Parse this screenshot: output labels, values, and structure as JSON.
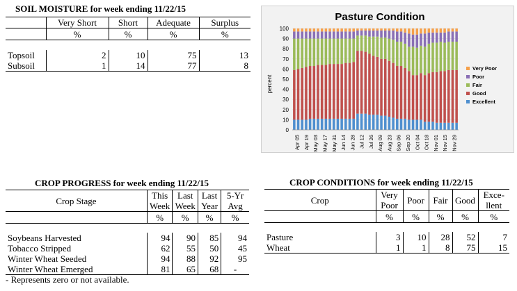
{
  "soil": {
    "title": "SOIL MOISTURE for week ending 11/22/15",
    "headers": [
      "",
      "Very Short",
      "Short",
      "Adequate",
      "Surplus"
    ],
    "units": [
      "",
      "%",
      "%",
      "%",
      "%"
    ],
    "rows": [
      [
        "Topsoil",
        "2",
        "10",
        "75",
        "13"
      ],
      [
        "Subsoil",
        "1",
        "14",
        "77",
        "8"
      ]
    ]
  },
  "progress": {
    "title": "CROP PROGRESS for week ending 11/22/15",
    "stage_header": "Crop Stage",
    "col_headers": [
      {
        "l1": "This",
        "l2": "Week"
      },
      {
        "l1": "Last",
        "l2": "Week"
      },
      {
        "l1": "Last",
        "l2": "Year"
      },
      {
        "l1": "5-Yr",
        "l2": "Avg"
      }
    ],
    "units": [
      "%",
      "%",
      "%",
      "%"
    ],
    "rows": [
      [
        "Soybeans Harvested",
        "94",
        "90",
        "85",
        "94"
      ],
      [
        "Tobacco Stripped",
        "62",
        "55",
        "50",
        "45"
      ],
      [
        "Winter Wheat Seeded",
        "94",
        "88",
        "92",
        "95"
      ],
      [
        "Winter Wheat Emerged",
        "81",
        "65",
        "68",
        "-"
      ]
    ],
    "footnote": "- Represents zero or not available."
  },
  "conditions": {
    "title": "CROP CONDITIONS for week ending 11/22/15",
    "crop_header": "Crop",
    "col_headers": [
      {
        "l1": "Very",
        "l2": "Poor"
      },
      {
        "l1": "Poor",
        "l2": ""
      },
      {
        "l1": "Fair",
        "l2": ""
      },
      {
        "l1": "Good",
        "l2": ""
      },
      {
        "l1": "Exce-",
        "l2": "llent"
      }
    ],
    "units": [
      "%",
      "%",
      "%",
      "%",
      "%"
    ],
    "rows": [
      [
        "Pasture",
        "3",
        "10",
        "28",
        "52",
        "7"
      ],
      [
        "Wheat",
        "1",
        "1",
        "8",
        "75",
        "15"
      ]
    ]
  },
  "chart_data": {
    "type": "bar",
    "stacked": true,
    "title": "Pasture Condition",
    "ylabel": "percent",
    "ylim": [
      0,
      100
    ],
    "yticks": [
      0,
      10,
      20,
      30,
      40,
      50,
      60,
      70,
      80,
      90,
      100
    ],
    "x_tick_labels": [
      "Apr 05",
      "Apr 19",
      "May 03",
      "May 17",
      "May 31",
      "Jun 14",
      "Jun 28",
      "Jul 12",
      "Jul 26",
      "Aug 09",
      "Aug 23",
      "Sep 06",
      "Sep 20",
      "Oct 04",
      "Oct 18",
      "Nov 01",
      "Nov 15",
      "Nov 29"
    ],
    "legend_position": "right",
    "colors": {
      "Very Poor": "#f5a04a",
      "Poor": "#8a6fb5",
      "Fair": "#9bbb59",
      "Good": "#c0504d",
      "Excellent": "#4f8fcf"
    },
    "series": [
      {
        "name": "Excellent",
        "values": [
          10,
          10,
          10,
          10,
          11,
          11,
          11,
          11,
          11,
          11,
          11,
          11,
          11,
          11,
          11,
          11,
          16,
          16,
          16,
          15,
          15,
          15,
          14,
          14,
          13,
          12,
          11,
          11,
          11,
          10,
          10,
          10,
          10,
          8,
          8,
          8,
          7,
          7,
          7,
          7,
          7,
          7
        ]
      },
      {
        "name": "Good",
        "values": [
          49,
          50,
          51,
          52,
          52,
          52,
          53,
          53,
          53,
          54,
          54,
          54,
          54,
          55,
          55,
          56,
          62,
          62,
          61,
          60,
          58,
          57,
          56,
          56,
          55,
          54,
          52,
          52,
          50,
          48,
          44,
          44,
          46,
          46,
          48,
          49,
          50,
          51,
          51,
          52,
          52,
          52
        ]
      },
      {
        "name": "Fair",
        "values": [
          31,
          30,
          29,
          28,
          27,
          27,
          26,
          26,
          26,
          25,
          25,
          25,
          25,
          24,
          24,
          23,
          15,
          15,
          16,
          17,
          19,
          20,
          21,
          21,
          22,
          23,
          24,
          24,
          24,
          24,
          28,
          27,
          27,
          28,
          29,
          29,
          29,
          29,
          28,
          28,
          28,
          28
        ]
      },
      {
        "name": "Poor",
        "values": [
          7,
          7,
          7,
          7,
          7,
          7,
          7,
          7,
          7,
          7,
          7,
          7,
          7,
          7,
          7,
          7,
          5,
          5,
          5,
          6,
          6,
          6,
          7,
          7,
          8,
          9,
          10,
          10,
          11,
          13,
          12,
          13,
          12,
          13,
          11,
          10,
          10,
          9,
          10,
          10,
          10,
          10
        ]
      },
      {
        "name": "Very Poor",
        "values": [
          3,
          3,
          3,
          3,
          3,
          3,
          3,
          3,
          3,
          3,
          3,
          3,
          3,
          3,
          3,
          3,
          2,
          2,
          2,
          2,
          2,
          2,
          2,
          2,
          2,
          2,
          3,
          3,
          4,
          5,
          6,
          6,
          5,
          5,
          4,
          4,
          4,
          4,
          4,
          3,
          3,
          3
        ]
      }
    ]
  }
}
